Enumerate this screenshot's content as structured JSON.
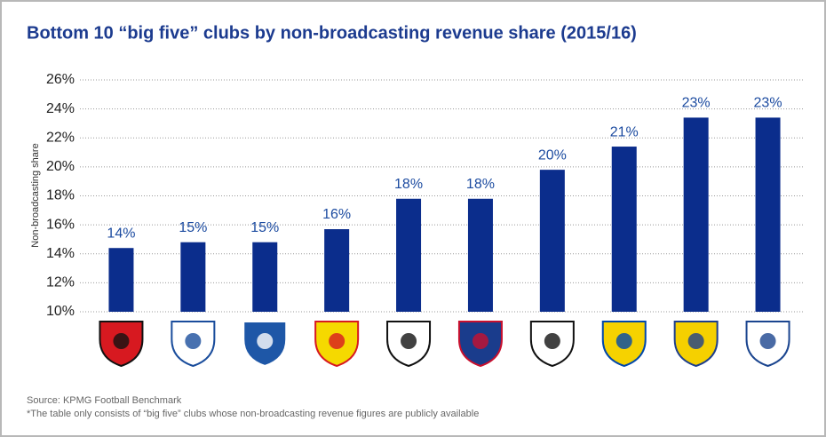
{
  "chart_data": {
    "type": "bar",
    "title": "Bottom 10 “big five” clubs by non-broadcasting revenue share (2015/16)",
    "y_label": "Non-broadcasting share",
    "categories": [
      null,
      null,
      null,
      null,
      null,
      null,
      null,
      null,
      null,
      null
    ],
    "values": [
      14.4,
      14.8,
      14.8,
      15.7,
      17.8,
      17.8,
      19.8,
      21.4,
      23.4,
      23.4
    ],
    "value_labels": [
      "14%",
      "15%",
      "15%",
      "16%",
      "18%",
      "18%",
      "20%",
      "21%",
      "23%",
      "23%"
    ],
    "color": "#0b2d8c",
    "ylim": [
      10,
      26
    ],
    "yticks": [
      {
        "value": 10,
        "label": "10%"
      },
      {
        "value": 12,
        "label": "12%"
      },
      {
        "value": 14,
        "label": "14%"
      },
      {
        "value": 16,
        "label": "16%"
      },
      {
        "value": 18,
        "label": "18%"
      },
      {
        "value": 20,
        "label": "20%"
      },
      {
        "value": 22,
        "label": "22%"
      },
      {
        "value": 24,
        "label": "24%"
      },
      {
        "value": 26,
        "label": "26%"
      }
    ],
    "grid": true,
    "source": "Source: KPMG Football Benchmark",
    "note": "*The table only consists of “big five” clubs whose non-broadcasting revenue figures are publicly available"
  }
}
